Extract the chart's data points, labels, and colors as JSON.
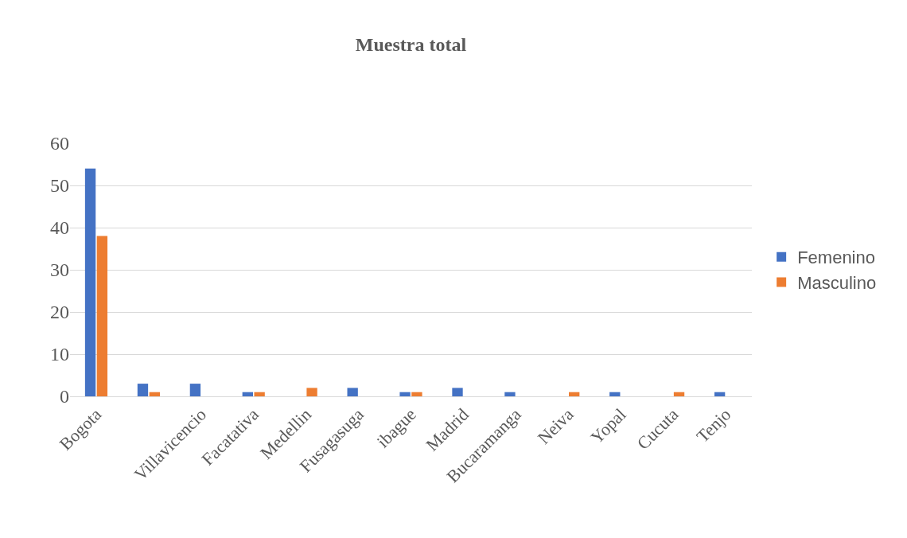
{
  "chart_data": {
    "type": "bar",
    "title": "Muestra total",
    "categories": [
      "Bogota",
      null,
      "Villavicencio",
      "Facatativa",
      "Medellin",
      "Fusagasuga",
      "ibague",
      "Madrid",
      "Bucaramanga",
      "Neiva",
      "Yopal",
      "Cucuta",
      "Tenjo"
    ],
    "series": [
      {
        "name": "Femenino",
        "color": "#4472c4",
        "values": [
          54,
          3,
          3,
          1,
          0,
          2,
          1,
          2,
          1,
          0,
          1,
          0,
          1
        ]
      },
      {
        "name": "Masculino",
        "color": "#ed7d31",
        "values": [
          38,
          1,
          0,
          1,
          2,
          0,
          1,
          0,
          0,
          1,
          0,
          1,
          0
        ]
      }
    ],
    "ylim": [
      0,
      60
    ],
    "yticks": [
      0,
      10,
      20,
      30,
      40,
      50,
      60
    ],
    "grid": "y",
    "legend": "right"
  }
}
